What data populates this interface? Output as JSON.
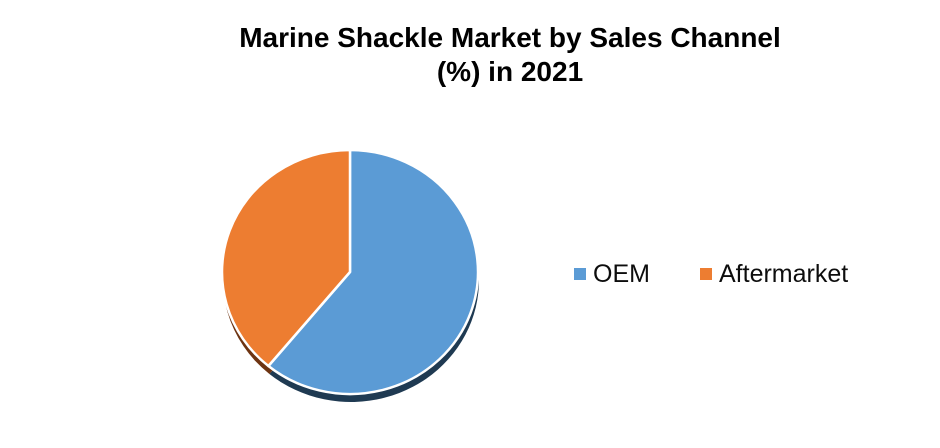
{
  "chart": {
    "title_line1": "Marine Shackle Market by Sales Channel",
    "title_line2": "(%) in 2021",
    "title_color": "#000000",
    "background_color": "#ffffff"
  },
  "chart_data": {
    "type": "pie",
    "title": "Marine Shackle Market by Sales Channel (%) in 2021",
    "unit": "%",
    "labels": [
      "OEM",
      "Aftermarket"
    ],
    "values": [
      61,
      39
    ],
    "colors": [
      "#5B9BD5",
      "#ED7D31"
    ],
    "shadow_colors": [
      "#1F3A52",
      "#6E3412"
    ],
    "slice_border_color": "#FFFFFF",
    "start_angle_deg": 0,
    "direction": "clockwise",
    "legend_position": "right",
    "data_labels_shown": false
  }
}
